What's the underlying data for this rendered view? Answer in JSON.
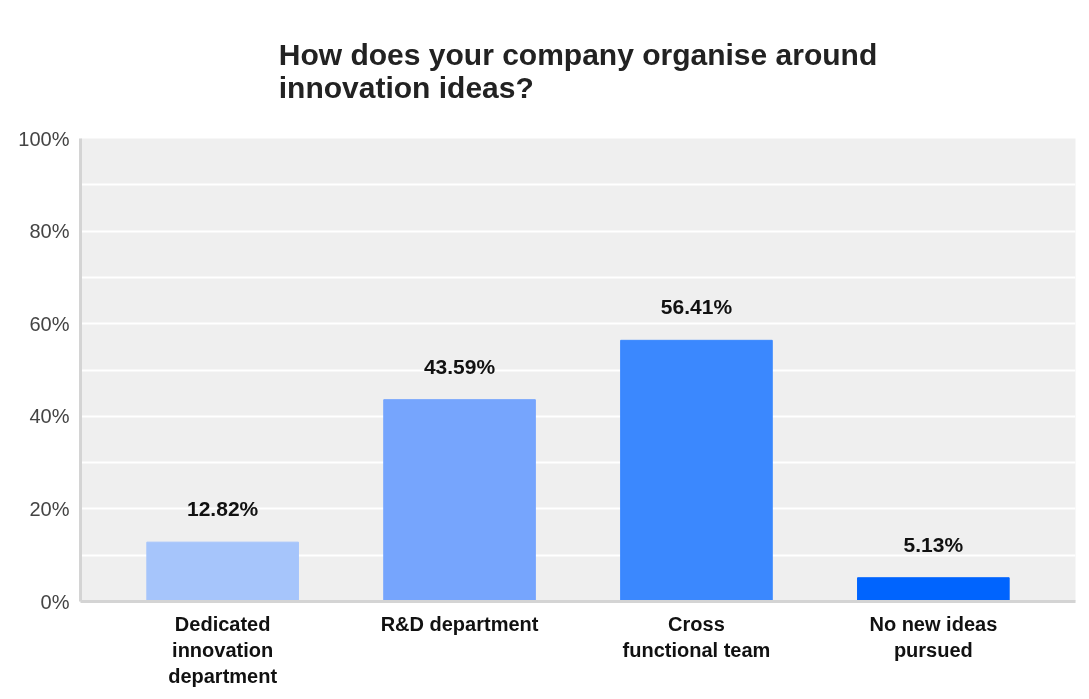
{
  "chart_data": {
    "type": "bar",
    "title": "How does your company organise around innovation ideas?",
    "categories": [
      "Dedicated innovation department",
      "R&D department",
      "Cross functional team",
      "No new ideas pursued"
    ],
    "values": [
      12.82,
      43.59,
      56.41,
      5.13
    ],
    "colors": [
      "#a6c5fb",
      "#76a5fd",
      "#3b88fe",
      "#0064fe"
    ],
    "value_labels": [
      "12.82%",
      "43.59%",
      "56.41%",
      "5.13%"
    ],
    "ylim": [
      0,
      100
    ],
    "yticks": [
      {
        "value": 0,
        "label": "0%"
      },
      {
        "value": 10,
        "label": null
      },
      {
        "value": 20,
        "label": "20%"
      },
      {
        "value": 30,
        "label": null
      },
      {
        "value": 40,
        "label": "40%"
      },
      {
        "value": 50,
        "label": null
      },
      {
        "value": 60,
        "label": "60%"
      },
      {
        "value": 70,
        "label": null
      },
      {
        "value": 80,
        "label": "80%"
      },
      {
        "value": 90,
        "label": null
      },
      {
        "value": 100,
        "label": "100%"
      }
    ],
    "grid": "y"
  }
}
